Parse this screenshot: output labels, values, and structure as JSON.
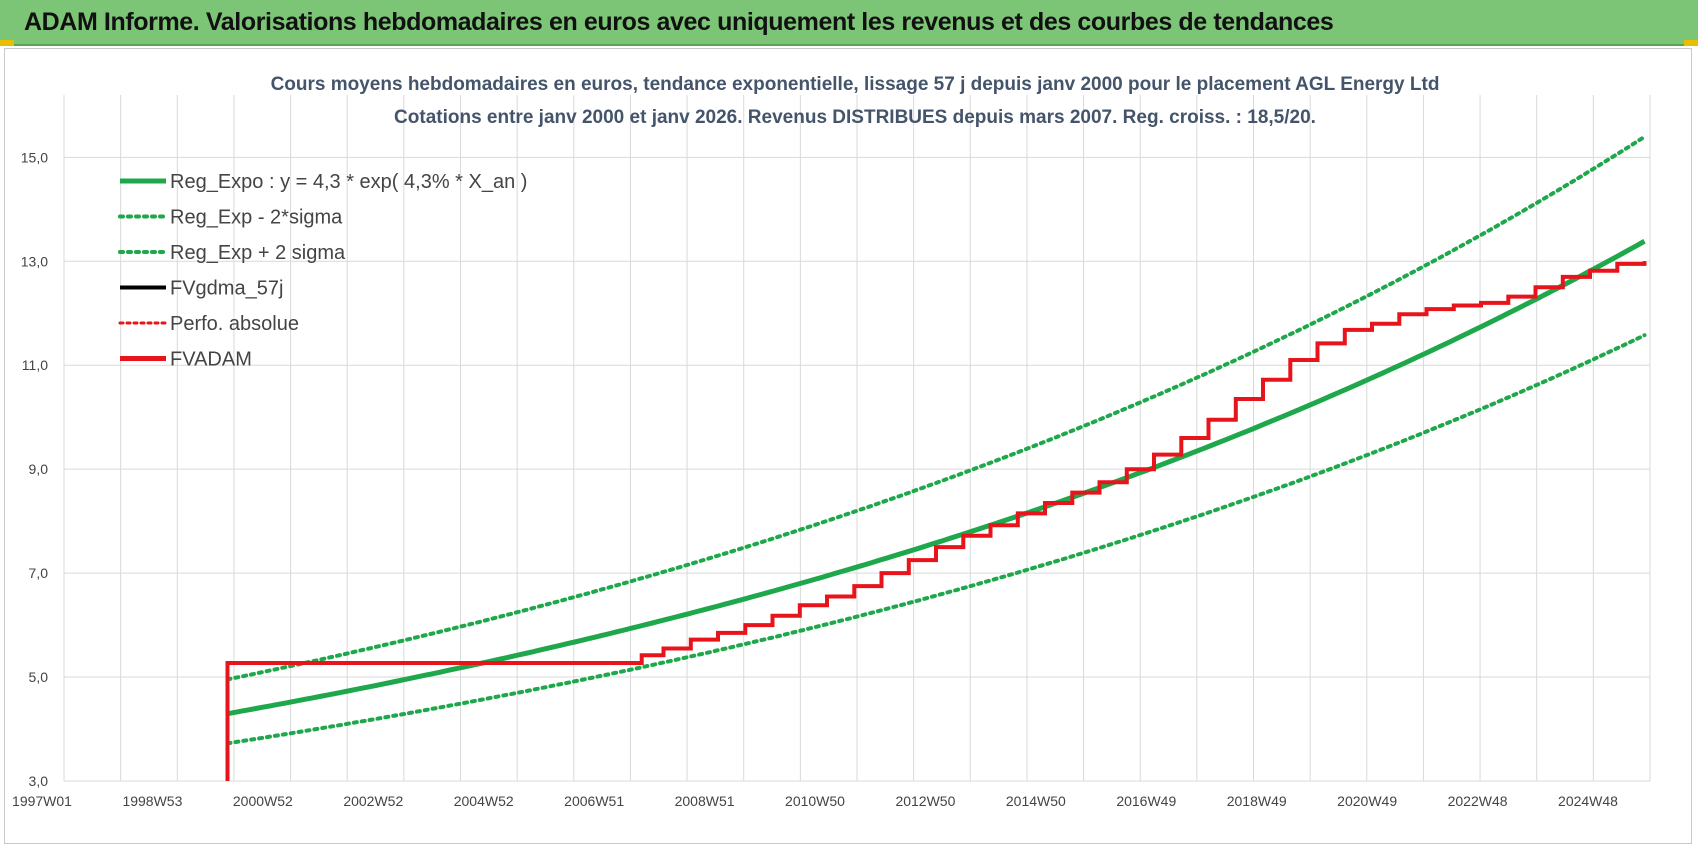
{
  "header": {
    "title": "ADAM Informe. Valorisations hebdomadaires en euros avec uniquement les revenus et des courbes de tendances"
  },
  "colors": {
    "header_bg": "#7cc576",
    "reg_green": "#1ea84b",
    "fvadam_red": "#e8141b",
    "fvgdma_black": "#000000",
    "grid": "#d9d9d9"
  },
  "chart_data": {
    "type": "line",
    "title_line1": "Cours moyens hebdomadaires en euros, tendance exponentielle, lissage 57 j depuis janv 2000  pour le placement AGL Energy Ltd",
    "title_line2": "Cotations entre janv 2000 et janv 2026. Revenus DISTRIBUES depuis mars 2007.  Reg. croiss. : 18,5/20.",
    "x_tick_labels": [
      "1997W01",
      "1998W53",
      "2000W52",
      "2002W52",
      "2004W52",
      "2006W51",
      "2008W51",
      "2010W50",
      "2012W50",
      "2014W50",
      "2016W49",
      "2018W49",
      "2020W49",
      "2022W48",
      "2024W48"
    ],
    "y_tick_labels": [
      "3,0",
      "5,0",
      "7,0",
      "9,0",
      "11,0",
      "13,0",
      "15,0"
    ],
    "xlim": [
      1997.0,
      2026.1
    ],
    "ylim": [
      3.0,
      16.2
    ],
    "y_ticks": [
      3,
      5,
      7,
      9,
      11,
      13,
      15
    ],
    "grid": true,
    "legend_position": "top-left",
    "legend": [
      {
        "key": "reg_expo",
        "label": "Reg_Expo : y = 4,3 * exp( 4,3% *  X_an )"
      },
      {
        "key": "reg_minus",
        "label": "Reg_Exp - 2*sigma"
      },
      {
        "key": "reg_plus",
        "label": "Reg_Exp + 2 sigma"
      },
      {
        "key": "fvgdma",
        "label": "FVgdma_57j"
      },
      {
        "key": "perfo",
        "label": "Perfo. absolue"
      },
      {
        "key": "fvadam",
        "label": "FVADAM"
      }
    ],
    "series": [
      {
        "key": "reg_expo",
        "x": [
          2000.0,
          2002.0,
          2004.0,
          2006.0,
          2008.0,
          2010.0,
          2012.0,
          2014.0,
          2016.0,
          2018.0,
          2020.0,
          2022.0,
          2024.0,
          2026.0
        ],
        "values": [
          4.32,
          4.7,
          5.12,
          5.58,
          6.08,
          6.63,
          7.24,
          7.9,
          8.62,
          9.42,
          10.29,
          11.25,
          12.3,
          13.45
        ]
      },
      {
        "key": "reg_minus",
        "x": [
          2000.0,
          2002.0,
          2004.0,
          2006.0,
          2008.0,
          2010.0,
          2012.0,
          2014.0,
          2016.0,
          2018.0,
          2020.0,
          2022.0,
          2024.0,
          2026.0
        ],
        "values": [
          3.75,
          4.07,
          4.43,
          4.83,
          5.27,
          5.75,
          6.27,
          6.84,
          7.47,
          8.16,
          8.92,
          9.74,
          10.64,
          11.6
        ]
      },
      {
        "key": "reg_plus",
        "x": [
          2000.0,
          2002.0,
          2004.0,
          2006.0,
          2008.0,
          2010.0,
          2012.0,
          2014.0,
          2016.0,
          2018.0,
          2020.0,
          2022.0,
          2024.0,
          2026.0
        ],
        "values": [
          5.0,
          5.42,
          5.9,
          6.43,
          7.0,
          7.64,
          8.33,
          9.09,
          9.92,
          10.83,
          11.83,
          12.93,
          14.14,
          15.55
        ]
      },
      {
        "key": "fvadam",
        "x": [
          2000.0,
          2000.0,
          2007.2,
          2007.6,
          2008.0,
          2008.5,
          2009.0,
          2009.5,
          2010.0,
          2010.5,
          2011.0,
          2011.5,
          2012.0,
          2012.5,
          2013.0,
          2013.5,
          2014.0,
          2014.5,
          2015.0,
          2015.5,
          2016.0,
          2016.5,
          2017.0,
          2017.5,
          2018.0,
          2018.5,
          2019.0,
          2019.5,
          2020.0,
          2020.5,
          2021.0,
          2021.5,
          2022.0,
          2022.5,
          2023.0,
          2023.5,
          2024.0,
          2024.5,
          2025.0,
          2025.5,
          2026.0
        ],
        "values": [
          3.0,
          5.27,
          5.27,
          5.42,
          5.55,
          5.72,
          5.85,
          6.0,
          6.18,
          6.38,
          6.55,
          6.75,
          7.0,
          7.25,
          7.5,
          7.72,
          7.92,
          8.15,
          8.35,
          8.55,
          8.75,
          9.0,
          9.28,
          9.6,
          9.95,
          10.35,
          10.72,
          11.1,
          11.42,
          11.68,
          11.8,
          11.98,
          12.08,
          12.15,
          12.2,
          12.32,
          12.5,
          12.7,
          12.82,
          12.95,
          13.0
        ]
      }
    ]
  }
}
